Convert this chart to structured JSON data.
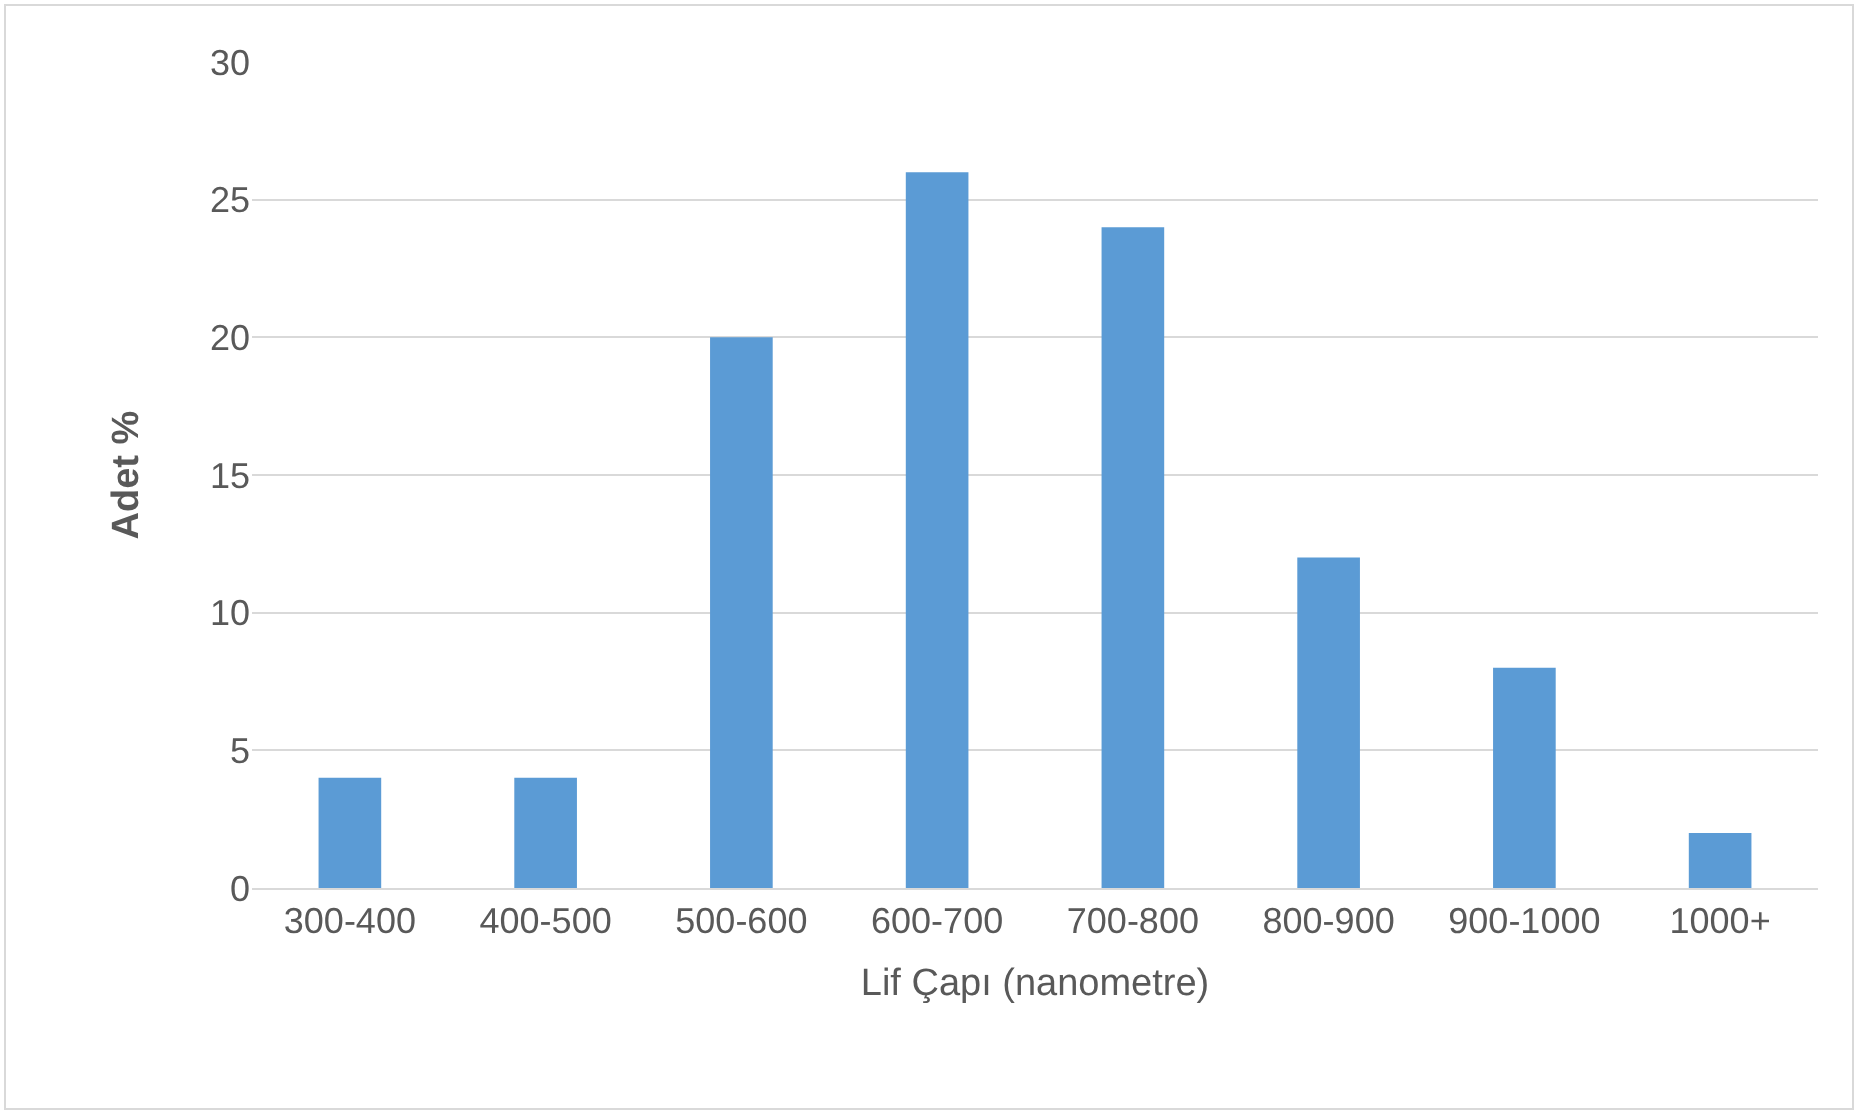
{
  "chart_data": {
    "type": "bar",
    "categories": [
      "300-400",
      "400-500",
      "500-600",
      "600-700",
      "700-800",
      "800-900",
      "900-1000",
      "1000+"
    ],
    "values": [
      4,
      4,
      20,
      26,
      24,
      12,
      8,
      2
    ],
    "color": "#5b9bd5",
    "xlabel": "Lif Çapı (nanometre)",
    "ylabel": "Adet %",
    "ylim": [
      0,
      30
    ],
    "yticks": [
      0,
      5,
      10,
      15,
      20,
      25,
      30
    ],
    "grid": "y"
  }
}
